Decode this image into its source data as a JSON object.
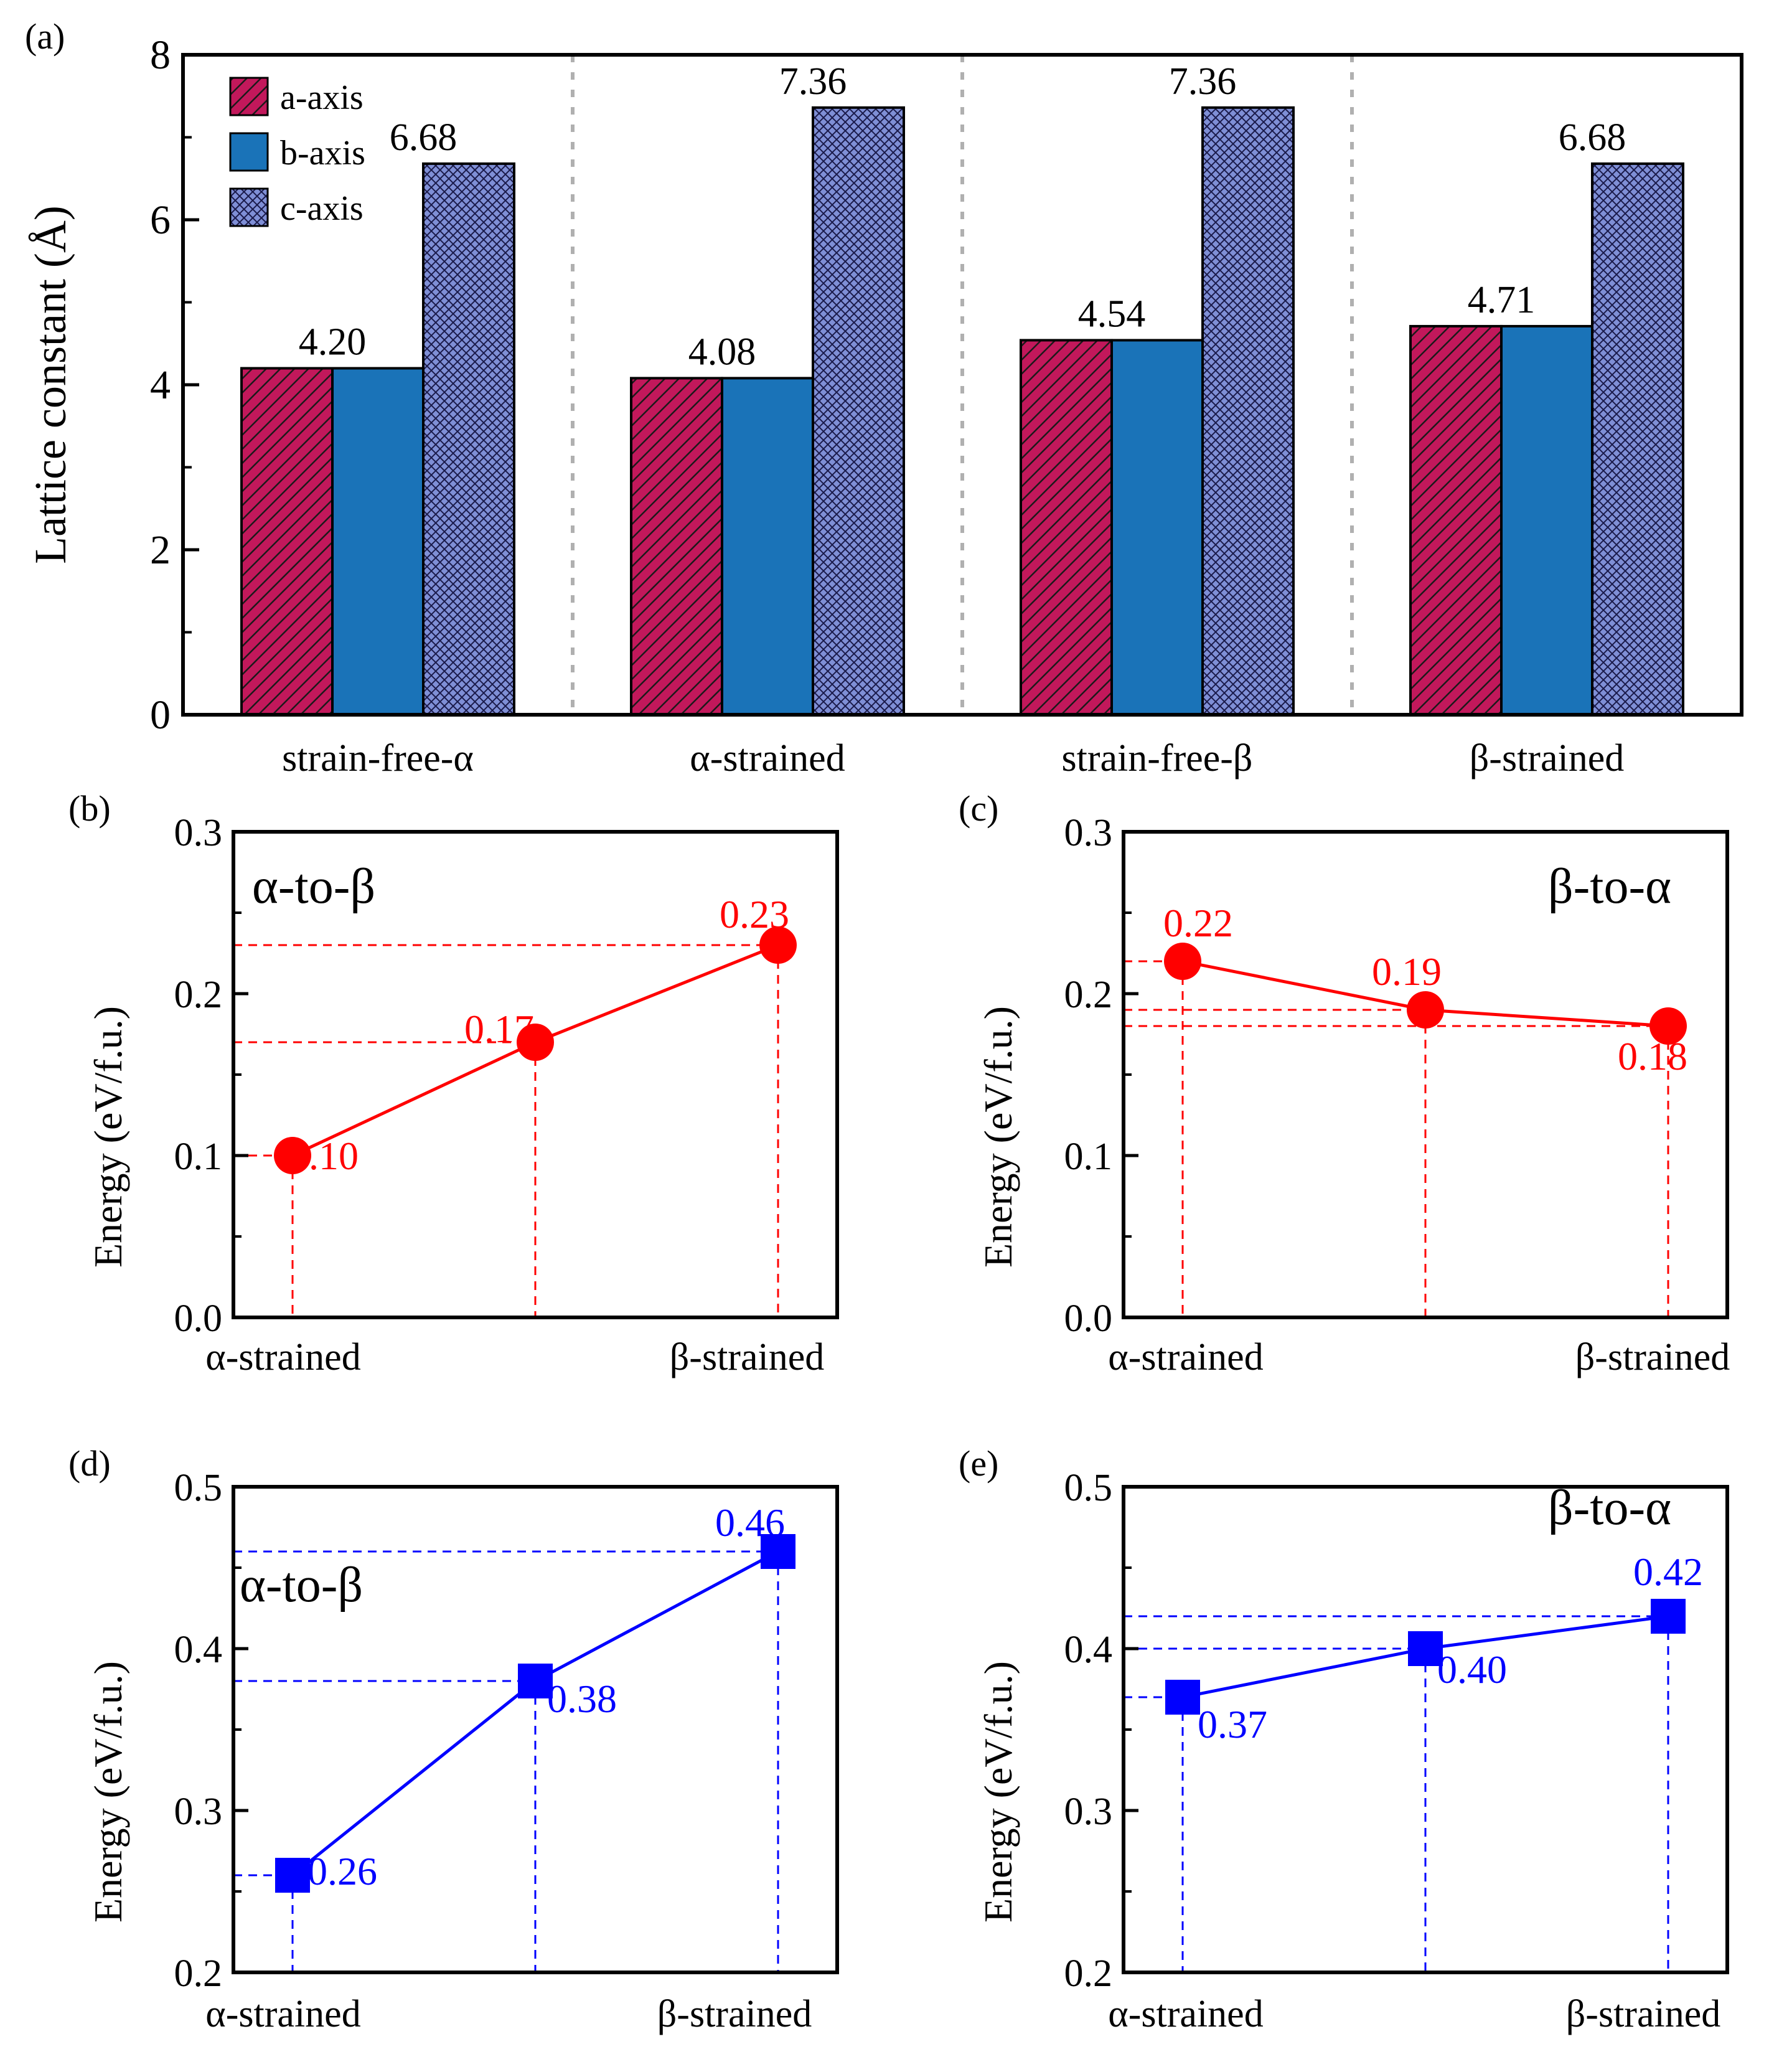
{
  "colors": {
    "a_axis": "#c2185b",
    "b_axis": "#1a73b8",
    "c_axis": "#7f8fd6",
    "red_series": "#ff0000",
    "blue_series": "#0000ff"
  },
  "chart_data": [
    {
      "id": "a",
      "panel_label": "(a)",
      "type": "bar",
      "title": "",
      "xlabel": "",
      "ylabel": "Lattice constant (Å)",
      "ylim": [
        0,
        8
      ],
      "yticks": [
        "0",
        "2",
        "4",
        "6",
        "8"
      ],
      "categories": [
        "strain-free-α",
        "α-strained",
        "strain-free-β",
        "β-strained"
      ],
      "series": [
        {
          "name": "a-axis",
          "values": [
            4.2,
            4.08,
            4.54,
            4.71
          ]
        },
        {
          "name": "b-axis",
          "values": [
            4.2,
            4.08,
            4.54,
            4.71
          ]
        },
        {
          "name": "c-axis",
          "values": [
            6.68,
            7.36,
            7.36,
            6.68
          ]
        }
      ],
      "value_labels_ab": [
        "4.20",
        "4.08",
        "4.54",
        "4.71"
      ],
      "value_labels_c": [
        "6.68",
        "7.36",
        "7.36",
        "6.68"
      ],
      "legend": "top-left"
    },
    {
      "id": "b",
      "panel_label": "(b)",
      "type": "line",
      "annotation": "α-to-β",
      "ylabel": "Energy (eV/f.u.)",
      "ylim": [
        0,
        0.3
      ],
      "yticks": [
        "0.0",
        "0.1",
        "0.2",
        "0.3"
      ],
      "xlabels": [
        "α-strained",
        "β-strained"
      ],
      "x": [
        0,
        1,
        2
      ],
      "values": [
        0.1,
        0.17,
        0.23
      ],
      "point_labels": [
        "0.10",
        "0.17",
        "0.23"
      ],
      "marker": "circle",
      "color": "red"
    },
    {
      "id": "c",
      "panel_label": "(c)",
      "type": "line",
      "annotation": "β-to-α",
      "ylabel": "Energy (eV/f.u.)",
      "ylim": [
        0,
        0.3
      ],
      "yticks": [
        "0.0",
        "0.1",
        "0.2",
        "0.3"
      ],
      "xlabels": [
        "α-strained",
        "β-strained"
      ],
      "x": [
        0,
        1,
        2
      ],
      "values": [
        0.22,
        0.19,
        0.18
      ],
      "point_labels": [
        "0.22",
        "0.19",
        "0.18"
      ],
      "marker": "circle",
      "color": "red"
    },
    {
      "id": "d",
      "panel_label": "(d)",
      "type": "line",
      "annotation": "α-to-β",
      "ylabel": "Energy (eV/f.u.)",
      "ylim": [
        0.2,
        0.5
      ],
      "yticks": [
        "0.2",
        "0.3",
        "0.4",
        "0.5"
      ],
      "xlabels": [
        "α-strained",
        "β-strained"
      ],
      "x": [
        0,
        1,
        2
      ],
      "values": [
        0.26,
        0.38,
        0.46
      ],
      "point_labels": [
        "0.26",
        "0.38",
        "0.46"
      ],
      "marker": "square",
      "color": "blue"
    },
    {
      "id": "e",
      "panel_label": "(e)",
      "type": "line",
      "annotation": "β-to-α",
      "ylabel": "Energy (eV/f.u.)",
      "ylim": [
        0.2,
        0.5
      ],
      "yticks": [
        "0.2",
        "0.3",
        "0.4",
        "0.5"
      ],
      "xlabels": [
        "α-strained",
        "β-strained"
      ],
      "x": [
        0,
        1,
        2
      ],
      "values": [
        0.37,
        0.4,
        0.42
      ],
      "point_labels": [
        "0.37",
        "0.40",
        "0.42"
      ],
      "marker": "square",
      "color": "blue"
    }
  ]
}
